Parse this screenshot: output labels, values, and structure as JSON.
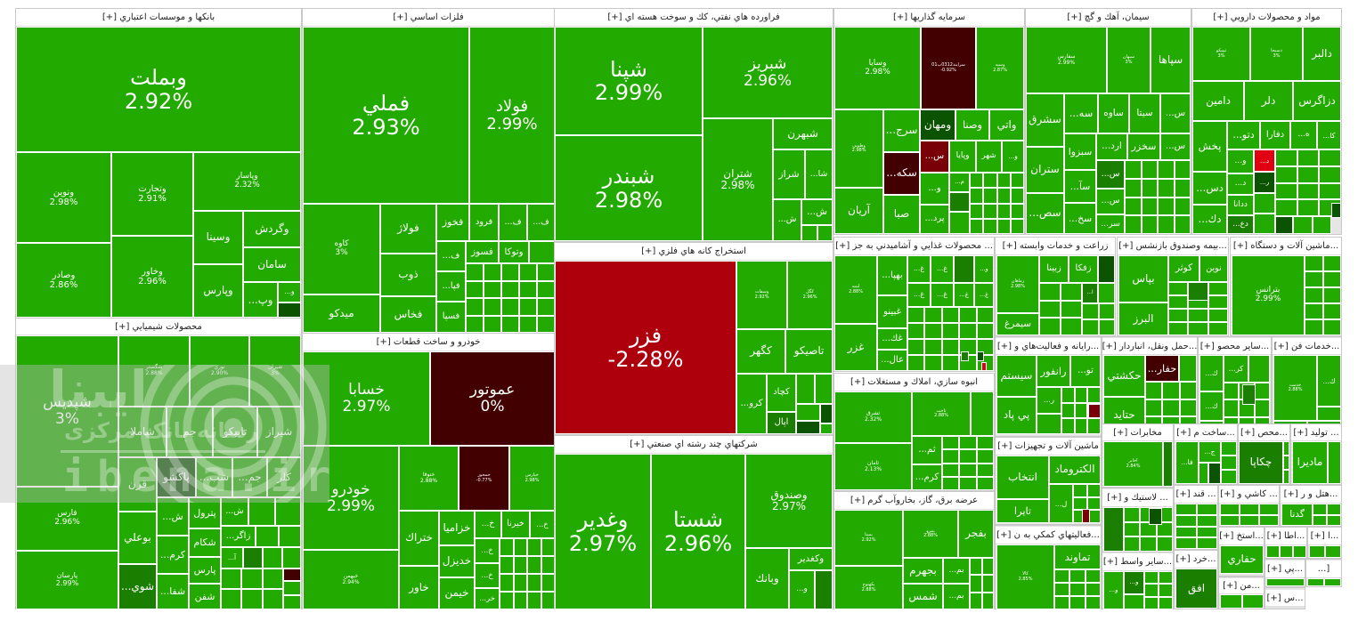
{
  "tones": {
    "g": "#22aa00",
    "g2": "#1a7e00",
    "g3": "#0b5300",
    "m": "#420000",
    "r": "#ad000c",
    "r2": "#e00012",
    "r3": "#7a0008"
  },
  "watermark": {
    "title": "ایبنا",
    "subtitle": "رسانه بانک مرکزی",
    "domain": "ibena.ir"
  },
  "sectors": [
    {
      "title": "بانكها و موسسات اعتباري [+]",
      "tiles": [
        {
          "symbol": "وبملت",
          "change": "2.92%"
        },
        {
          "symbol": "ونوين",
          "change": "2.98%"
        },
        {
          "symbol": "وصادر",
          "change": "2.86%"
        },
        {
          "symbol": "وتجارت",
          "change": "2.91%"
        },
        {
          "symbol": "وخاور",
          "change": "2.96%"
        },
        {
          "symbol": "وپاسار",
          "change": "2.32%"
        },
        {
          "symbol": "وسينا"
        },
        {
          "symbol": "وپارس"
        },
        {
          "symbol": "وگردش"
        },
        {
          "symbol": "سامان"
        },
        {
          "symbol": "وپ..."
        },
        {
          "symbol": "و..."
        },
        {
          "tone": "g3"
        }
      ]
    },
    {
      "title": "فلزات اساسي [+]",
      "tiles": [
        {
          "symbol": "فملي",
          "change": "2.93%"
        },
        {
          "symbol": "فولاد",
          "change": "2.99%"
        },
        {
          "symbol": "كاوه",
          "change": "3%"
        },
        {
          "symbol": "ميدكو"
        },
        {
          "symbol": "فولاژ"
        },
        {
          "symbol": "ذوب"
        },
        {
          "symbol": "فخاس"
        },
        {
          "symbol": "فخوز"
        },
        {
          "symbol": "فرود"
        },
        {
          "symbol": "ف..."
        },
        {
          "symbol": "ف..."
        },
        {
          "symbol": "ف..."
        },
        {
          "symbol": "فسوز"
        },
        {
          "symbol": "وتوكا"
        },
        {
          "symbol": "فپا..."
        },
        {
          "symbol": "فسپا"
        }
      ]
    },
    {
      "title": "محصولات شيميايي [+]",
      "tiles": [
        {
          "symbol": "شپديس",
          "change": "3%"
        },
        {
          "symbol": "فارس",
          "change": "2.96%"
        },
        {
          "symbol": "پارسان",
          "change": "2.99%"
        },
        {
          "symbol": "شگستر",
          "change": "2.88%"
        },
        {
          "symbol": "نوري",
          "change": "2.90%"
        },
        {
          "symbol": "شيران",
          "change": "3%"
        },
        {
          "symbol": "شاملا"
        },
        {
          "symbol": "جم"
        },
        {
          "symbol": "تاپيكو"
        },
        {
          "symbol": "شيراز"
        },
        {
          "symbol": "قرن"
        },
        {
          "symbol": "پاكشو",
          "tone": "g3"
        },
        {
          "symbol": "شب..."
        },
        {
          "symbol": "جم..."
        },
        {
          "symbol": "كلر"
        },
        {
          "symbol": "بوعلي"
        },
        {
          "symbol": "شوي...",
          "tone": "g2"
        },
        {
          "symbol": "ش..."
        },
        {
          "symbol": "كرم..."
        },
        {
          "symbol": "شفا..."
        },
        {
          "symbol": "پترول"
        },
        {
          "symbol": "شكام"
        },
        {
          "symbol": "پارس"
        },
        {
          "symbol": "شفن"
        },
        {
          "symbol": "ش..."
        },
        {
          "symbol": "زاگر..."
        },
        {
          "symbol": "آ..."
        },
        {
          "tone": "g2"
        },
        {
          "tone": "m"
        }
      ]
    },
    {
      "title": "خودرو و ساخت قطعات [+]",
      "tiles": [
        {
          "symbol": "خسابا",
          "change": "2.97%"
        },
        {
          "symbol": "عموتور",
          "change": "0%",
          "tone": "m"
        },
        {
          "symbol": "خودرو",
          "change": "2.99%"
        },
        {
          "symbol": "خبهمن",
          "change": "2.94%"
        },
        {
          "symbol": "ختوقا",
          "change": "2.88%"
        },
        {
          "symbol": "خمحور",
          "change": "-0.77%",
          "tone": "m"
        },
        {
          "symbol": "خپارس",
          "change": "2.98%"
        },
        {
          "symbol": "ختراك"
        },
        {
          "symbol": "خاور"
        },
        {
          "symbol": "خزاميا"
        },
        {
          "symbol": "خديزل"
        },
        {
          "symbol": "خيمن"
        },
        {
          "symbol": "خ..."
        },
        {
          "symbol": "خيرنا"
        },
        {
          "symbol": "خ..."
        },
        {
          "symbol": "خ..."
        },
        {
          "symbol": "خ..."
        },
        {
          "symbol": "خر..."
        }
      ]
    },
    {
      "title": "فراورده هاي نفتي، كك و سوخت هسته اي [+]",
      "tiles": [
        {
          "symbol": "شپنا",
          "change": "2.99%"
        },
        {
          "symbol": "شبندر",
          "change": "2.98%"
        },
        {
          "symbol": "شبريز",
          "change": "2.96%"
        },
        {
          "symbol": "شتران",
          "change": "2.98%"
        },
        {
          "symbol": "شبهرن"
        },
        {
          "symbol": "شراز"
        },
        {
          "symbol": "شا..."
        },
        {
          "symbol": "ش..."
        },
        {
          "symbol": "ش..."
        }
      ]
    },
    {
      "title": "استخراج كانه هاي فلزي [+]",
      "tiles": [
        {
          "symbol": "فزر",
          "change": "-2.28%",
          "tone": "r"
        },
        {
          "symbol": "وسفات",
          "change": "2.92%"
        },
        {
          "symbol": "كگل",
          "change": "2.96%"
        },
        {
          "symbol": "كگهر"
        },
        {
          "symbol": "تاصيكو"
        },
        {
          "symbol": "كرو..."
        },
        {
          "symbol": "كچاد"
        },
        {
          "symbol": "اپال",
          "tone": "g2"
        },
        {
          "tone": "g3"
        },
        {
          "tone": "g3"
        }
      ]
    },
    {
      "title": "شركتهاي چند رشته اي صنعتي [+]",
      "tiles": [
        {
          "symbol": "وغدير",
          "change": "2.97%"
        },
        {
          "symbol": "شستا",
          "change": "2.96%"
        },
        {
          "symbol": "وصندوق",
          "change": "2.97%"
        },
        {
          "symbol": "وبانك"
        },
        {
          "symbol": "وكغدير"
        },
        {
          "symbol": "و..."
        },
        {
          "tone": "g2"
        }
      ]
    },
    {
      "title": "سرمايه گذاريها [+]",
      "tiles": [
        {
          "symbol": "وسايا",
          "change": "2.98%"
        },
        {
          "symbol": "سرايند0312ب01",
          "change": "-0.92%",
          "tone": "m"
        },
        {
          "symbol": "وسپه",
          "change": "2.87%"
        },
        {
          "symbol": "وطوبي",
          "change": "2.98%"
        },
        {
          "symbol": "آريان"
        },
        {
          "symbol": "سرج..."
        },
        {
          "symbol": "سكه...",
          "tone": "m"
        },
        {
          "symbol": "صبا"
        },
        {
          "symbol": "ومهان",
          "tone": "g3"
        },
        {
          "symbol": "وصنا"
        },
        {
          "symbol": "واتي"
        },
        {
          "symbol": "س...",
          "tone": "r3"
        },
        {
          "symbol": "وپايا"
        },
        {
          "symbol": "شهر"
        },
        {
          "symbol": "و..."
        },
        {
          "symbol": "و..."
        },
        {
          "symbol": "م..."
        },
        {
          "symbol": "پرد..."
        },
        {
          "tone": "g2"
        }
      ]
    },
    {
      "title": "... محصولات غذايي و آشاميدني به جز [+]",
      "tiles": [
        {
          "symbol": "لبنيه",
          "change": "2.88%"
        },
        {
          "symbol": "غزر"
        },
        {
          "symbol": "بهپا..."
        },
        {
          "symbol": "غبينو"
        },
        {
          "symbol": "غك..."
        },
        {
          "symbol": "عال..."
        },
        {
          "symbol": "غ..."
        },
        {
          "symbol": "غ..."
        },
        {
          "tone": "g2"
        },
        {
          "symbol": "و..."
        },
        {
          "symbol": "غ..."
        },
        {
          "symbol": "غ..."
        },
        {
          "symbol": "غ..."
        },
        {
          "symbol": "غ..."
        },
        {
          "tone": "g2"
        },
        {
          "tone": "g3"
        },
        {
          "tone": "r2"
        }
      ]
    },
    {
      "title": "انبوه سازي، املاك و مستغلات [+]",
      "tiles": [
        {
          "symbol": "ثشرق",
          "change": "2.32%"
        },
        {
          "symbol": "ثامان",
          "change": "2.13%"
        },
        {
          "symbol": "ثاخت",
          "change": "2.88%"
        },
        {
          "symbol": "ثم..."
        },
        {
          "symbol": "كرم..."
        }
      ]
    },
    {
      "title": "عرضه برق، گاز، بخاروآب گرم [+]",
      "tiles": [
        {
          "symbol": "بمپنا",
          "change": "2.92%"
        },
        {
          "symbol": "بكهنوج",
          "change": "2.88%"
        },
        {
          "symbol": "بنيرو",
          "change": "2.88%"
        },
        {
          "symbol": "بفجر"
        },
        {
          "symbol": "بجهرم"
        },
        {
          "symbol": "بم..."
        },
        {
          "symbol": "شمس"
        },
        {
          "symbol": "بم..."
        }
      ]
    },
    {
      "title": "سيمان، آهك و گچ [+]",
      "tiles": [
        {
          "symbol": "سفارس",
          "change": "2.99%"
        },
        {
          "symbol": "سبهان",
          "change": "3%"
        },
        {
          "symbol": "سپاها"
        },
        {
          "symbol": "سشرق"
        },
        {
          "symbol": "ستران"
        },
        {
          "symbol": "سص..."
        },
        {
          "symbol": "سه..."
        },
        {
          "symbol": "ساوه"
        },
        {
          "symbol": "سيتا"
        },
        {
          "symbol": "س..."
        },
        {
          "symbol": "سبزوا"
        },
        {
          "symbol": "ارد..."
        },
        {
          "symbol": "سخزر"
        },
        {
          "symbol": "س..."
        },
        {
          "symbol": "سآ..."
        },
        {
          "symbol": "سخ..."
        },
        {
          "symbol": "س...",
          "tone": "g2"
        },
        {
          "symbol": "س..."
        },
        {
          "symbol": "سر..."
        }
      ]
    },
    {
      "title": "مواد و محصولات دارويي [+]",
      "tiles": [
        {
          "symbol": "تيپيكو",
          "change": "3%"
        },
        {
          "symbol": "دسبحا",
          "change": "3%"
        },
        {
          "symbol": "دالبر"
        },
        {
          "symbol": "دامين"
        },
        {
          "symbol": "دلر"
        },
        {
          "symbol": "دزاگرس"
        },
        {
          "symbol": "پخش"
        },
        {
          "symbol": "دس..."
        },
        {
          "symbol": "دك..."
        },
        {
          "symbol": "دتو..."
        },
        {
          "symbol": "دفارا"
        },
        {
          "symbol": "ه..."
        },
        {
          "symbol": "كا..."
        },
        {
          "symbol": "و..."
        },
        {
          "symbol": "د...",
          "tone": "r2"
        },
        {
          "symbol": "د..."
        },
        {
          "symbol": "ر...",
          "tone": "g3"
        },
        {
          "symbol": "ددانا"
        },
        {
          "symbol": "دع...",
          "tone": "g2"
        },
        {
          "tone": "g3"
        },
        {
          "tone": "g3"
        }
      ]
    },
    {
      "title": "زراعت و خدمات وابسته [+]",
      "tiles": [
        {
          "symbol": "زماهان",
          "change": "2.98%"
        },
        {
          "symbol": "سيمرغ"
        },
        {
          "symbol": "زبينا"
        },
        {
          "symbol": "زفكا"
        },
        {
          "tone": "g3"
        },
        {
          "symbol": "ا...",
          "tone": "g2"
        }
      ]
    },
    {
      "title": "...بيمه وصندوق بازنشس [+]",
      "tiles": [
        {
          "symbol": "بپاس"
        },
        {
          "symbol": "البرز"
        },
        {
          "symbol": "كوثر"
        },
        {
          "symbol": "نوين"
        },
        {
          "tone": "g2"
        }
      ]
    },
    {
      "title": "...ماشين آلات و دستگاه [+]",
      "tiles": [
        {
          "symbol": "بترانس",
          "change": "2.99%"
        }
      ]
    },
    {
      "title": "...رايانه و فعاليت‌هاي و [+]",
      "tiles": [
        {
          "symbol": "سيستم"
        },
        {
          "symbol": "پي پاد"
        },
        {
          "symbol": "رانفور"
        },
        {
          "symbol": "تو..."
        },
        {
          "symbol": "ر..."
        },
        {
          "tone": "r3"
        }
      ]
    },
    {
      "title": "...حمل ونقل، انباردار [+]",
      "tiles": [
        {
          "symbol": "حكشتي"
        },
        {
          "symbol": "حتايد"
        },
        {
          "symbol": "حفار...",
          "tone": "m"
        }
      ]
    },
    {
      "title": "...ساير محصو [+]",
      "tiles": [
        {
          "symbol": "ك..."
        },
        {
          "symbol": "كر..."
        },
        {
          "symbol": "ك..."
        },
        {
          "tone": "g2"
        }
      ]
    },
    {
      "title": "...خدمات فن [+]",
      "tiles": [
        {
          "symbol": "خدمت",
          "change": "2.88%"
        },
        {
          "symbol": "ك..."
        }
      ]
    },
    {
      "title": "ماشين آلات و تجهيزات [+]",
      "tiles": [
        {
          "symbol": "انتخاب"
        },
        {
          "symbol": "تايرا"
        },
        {
          "symbol": "الكتروماد"
        },
        {
          "symbol": "ل..."
        },
        {
          "tone": "r3"
        }
      ]
    },
    {
      "title": "...فعاليتهاي كمكي به ن [+]",
      "tiles": [
        {
          "symbol": "كالا",
          "change": "2.85%"
        },
        {
          "symbol": "تماوند"
        }
      ]
    },
    {
      "title": "مخابرات [+]",
      "tiles": [
        {
          "symbol": "اخابر",
          "change": "2.84%"
        },
        {
          "tone": "g2"
        }
      ]
    },
    {
      "title": "... لاستيك و [+]",
      "tiles": [
        {
          "tone": "g2"
        },
        {
          "tone": "g3"
        }
      ]
    },
    {
      "title": "...ساير واسط [+]",
      "tiles": [
        {
          "symbol": "و..."
        },
        {
          "symbol": "و...",
          "tone": "g2"
        }
      ]
    },
    {
      "title": "...ساخت م [+]",
      "tiles": [
        {
          "symbol": "فا..."
        },
        {
          "symbol": "ج..."
        },
        {
          "tone": "g3"
        }
      ]
    },
    {
      "title": "...محص [+]",
      "tiles": [
        {
          "symbol": "چكاپا",
          "tone": "g2"
        }
      ]
    },
    {
      "title": "... توليد [+]",
      "tiles": [
        {
          "symbol": "ماديرا"
        }
      ]
    },
    {
      "title": "... قند [+]",
      "tiles": []
    },
    {
      "title": "... كاشي و [+]",
      "tiles": []
    },
    {
      "title": "...هتل و ر [+]",
      "tiles": [
        {
          "symbol": "گدنا"
        }
      ]
    },
    {
      "title": "...خرد [+]",
      "tiles": [
        {
          "symbol": "افق",
          "tone": "g2"
        }
      ]
    },
    {
      "title": "...استخ [+]",
      "tiles": [
        {
          "symbol": "حفاري"
        }
      ]
    },
    {
      "title": "...اطا [+]",
      "tiles": []
    },
    {
      "title": "...ا [+]",
      "tiles": []
    },
    {
      "title": "...من [+]",
      "tiles": []
    },
    {
      "title": "...پي [+]",
      "tiles": []
    },
    {
      "title": "[...",
      "tiles": []
    },
    {
      "title": "...س [+]",
      "tiles": []
    }
  ]
}
